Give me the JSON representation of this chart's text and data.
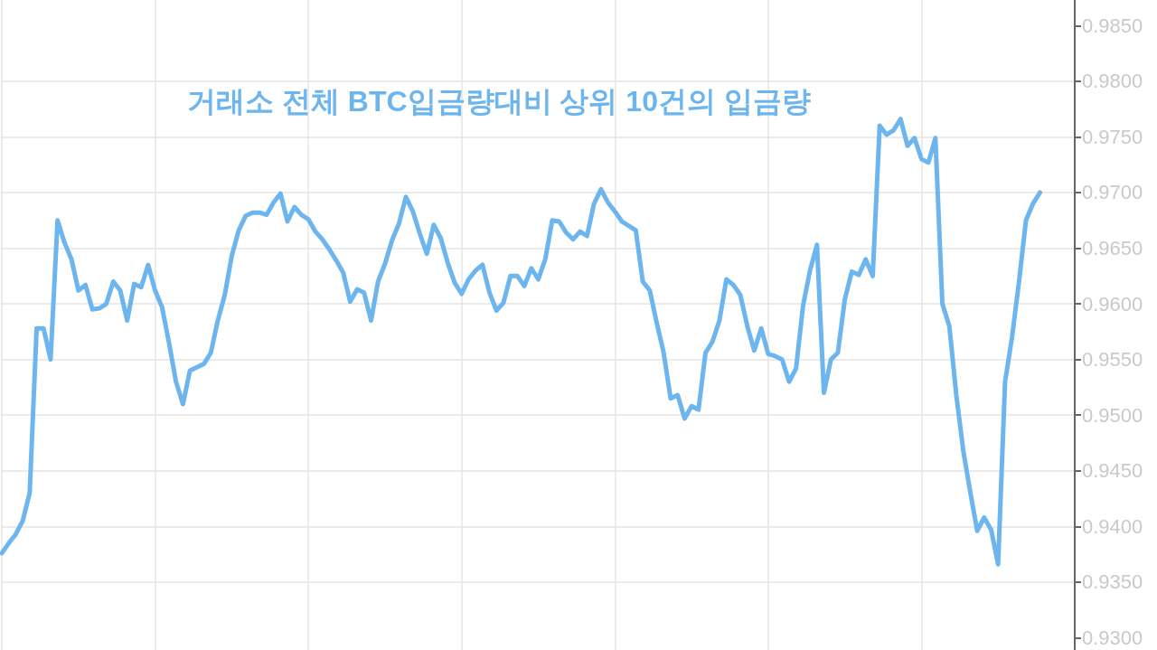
{
  "chart_data": {
    "type": "line",
    "title": "거래소 전체 BTC입금량대비 상위 10건의 입금량",
    "categories": [
      null,
      null,
      null,
      null,
      null,
      null,
      null,
      null,
      null,
      null,
      null,
      null,
      null,
      null,
      null,
      null,
      null,
      null,
      null,
      null,
      null,
      null,
      null,
      null,
      null,
      null,
      null,
      null,
      null,
      null,
      null,
      null,
      null,
      null,
      null,
      null,
      null,
      null,
      null,
      null,
      null,
      null,
      null,
      null,
      null,
      null,
      null,
      null,
      null,
      null,
      null,
      null,
      null,
      null,
      null,
      null,
      null,
      null,
      null,
      null,
      null,
      null,
      null,
      null,
      null,
      null,
      null,
      null,
      null,
      null,
      null,
      null,
      null,
      null,
      null,
      null,
      null,
      null,
      null,
      null,
      null,
      null,
      null,
      null,
      null,
      null,
      null,
      null,
      null,
      null,
      null,
      null,
      null,
      null,
      null,
      null,
      null,
      null,
      null,
      null,
      null,
      null,
      null,
      null,
      null,
      null,
      null,
      null,
      null,
      null,
      null,
      null,
      null,
      null,
      null,
      null,
      null,
      null,
      null,
      null,
      null,
      null,
      null,
      null,
      null,
      null,
      null,
      null,
      null,
      null,
      null,
      null,
      null,
      null,
      null,
      null,
      null,
      null,
      null,
      null,
      null,
      null,
      null,
      null,
      null,
      null,
      null,
      null,
      null,
      null,
      null,
      null,
      null,
      null,
      null
    ],
    "series": [
      {
        "color": "#6db5ee",
        "values": [
          0.9376,
          0.9385,
          0.9393,
          0.9405,
          0.943,
          0.9578,
          0.9578,
          0.955,
          0.9675,
          0.9655,
          0.964,
          0.9612,
          0.9617,
          0.9595,
          0.9596,
          0.96,
          0.962,
          0.9612,
          0.9585,
          0.9618,
          0.9615,
          0.9635,
          0.9612,
          0.9597,
          0.9565,
          0.953,
          0.951,
          0.954,
          0.9543,
          0.9546,
          0.9556,
          0.9585,
          0.9608,
          0.9643,
          0.9666,
          0.9679,
          0.9682,
          0.9682,
          0.968,
          0.9691,
          0.9699,
          0.9674,
          0.9687,
          0.968,
          0.9676,
          0.9665,
          0.9658,
          0.9649,
          0.9639,
          0.9628,
          0.9602,
          0.9613,
          0.961,
          0.9585,
          0.962,
          0.9636,
          0.9657,
          0.9672,
          0.9696,
          0.9683,
          0.9663,
          0.9645,
          0.9671,
          0.9659,
          0.9637,
          0.9619,
          0.9609,
          0.9622,
          0.963,
          0.9635,
          0.961,
          0.9594,
          0.9601,
          0.9625,
          0.9625,
          0.9616,
          0.9632,
          0.9622,
          0.964,
          0.9675,
          0.9674,
          0.9664,
          0.9658,
          0.9665,
          0.9661,
          0.969,
          0.9703,
          0.9691,
          0.9683,
          0.9674,
          0.967,
          0.9666,
          0.962,
          0.9612,
          0.9583,
          0.9556,
          0.9515,
          0.9518,
          0.9497,
          0.9508,
          0.9505,
          0.9556,
          0.9566,
          0.9585,
          0.9622,
          0.9617,
          0.9608,
          0.958,
          0.9558,
          0.9578,
          0.9555,
          0.9553,
          0.955,
          0.953,
          0.9542,
          0.9598,
          0.963,
          0.9653,
          0.952,
          0.955,
          0.9556,
          0.9604,
          0.9629,
          0.9626,
          0.964,
          0.9625,
          0.976,
          0.9752,
          0.9756,
          0.9766,
          0.9742,
          0.9749,
          0.973,
          0.9727,
          0.9749,
          0.96,
          0.958,
          0.9518,
          0.9468,
          0.9431,
          0.9396,
          0.9408,
          0.9397,
          0.9366,
          0.953,
          0.957,
          0.962,
          0.9675,
          0.969,
          0.97,
          null,
          null,
          null,
          null,
          null
        ]
      }
    ],
    "ylim": [
      0.9289,
      0.9873
    ],
    "yticks": [
      {
        "value": 0.93,
        "label": "0.9300"
      },
      {
        "value": 0.935,
        "label": "0.9350"
      },
      {
        "value": 0.94,
        "label": "0.9400"
      },
      {
        "value": 0.945,
        "label": "0.9450"
      },
      {
        "value": 0.95,
        "label": "0.9500"
      },
      {
        "value": 0.955,
        "label": "0.9550"
      },
      {
        "value": 0.96,
        "label": "0.9600"
      },
      {
        "value": 0.965,
        "label": "0.9650"
      },
      {
        "value": 0.97,
        "label": "0.9700"
      },
      {
        "value": 0.975,
        "label": "0.9750"
      },
      {
        "value": 0.98,
        "label": "0.9800"
      },
      {
        "value": 0.985,
        "label": "0.9850"
      }
    ],
    "grid": true,
    "tick_labels": "y",
    "line_style": "solid"
  }
}
